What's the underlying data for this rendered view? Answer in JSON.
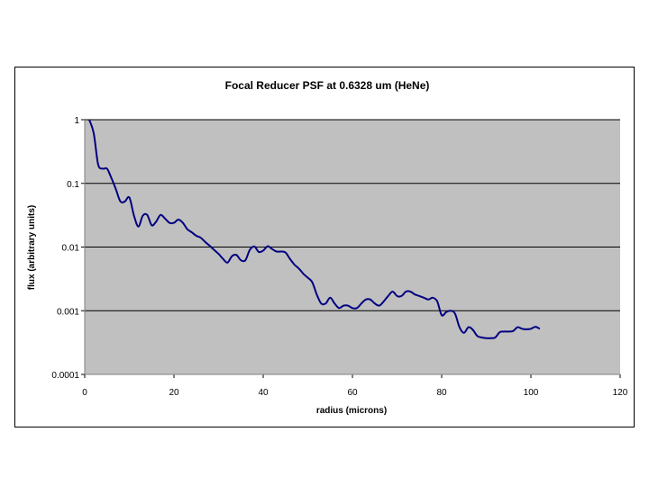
{
  "chart_data": {
    "type": "line",
    "title": "Focal Reducer PSF at 0.6328 um (HeNe)",
    "xlabel": "radius (microns)",
    "ylabel": "flux (arbitrary units)",
    "xlim": [
      0,
      120
    ],
    "ylim": [
      0.0001,
      1
    ],
    "yscale": "log",
    "xticks": [
      0,
      20,
      40,
      60,
      80,
      100,
      120
    ],
    "yticks": [
      0.0001,
      0.001,
      0.01,
      0.1,
      1
    ],
    "xtick_labels": [
      "0",
      "20",
      "40",
      "60",
      "80",
      "100",
      "120"
    ],
    "ytick_labels": [
      "0.0001",
      "0.001",
      "0.01",
      "0.1",
      "1"
    ],
    "grid": "horizontal",
    "legend": "none",
    "colors": {
      "plot_bg": "#c0c0c0",
      "line": "#000080",
      "grid": "#000000"
    },
    "series": [
      {
        "x": [
          1,
          2,
          3,
          4,
          5,
          6,
          7,
          8,
          9,
          10,
          11,
          12,
          13,
          14,
          15,
          16,
          17,
          18,
          19,
          20,
          21,
          22,
          23,
          24,
          25,
          26,
          27,
          28,
          29,
          30,
          31,
          32,
          33,
          34,
          35,
          36,
          37,
          38,
          39,
          40,
          41,
          42,
          43,
          44,
          45,
          46,
          47,
          48,
          49,
          50,
          51,
          52,
          53,
          54,
          55,
          56,
          57,
          58,
          59,
          60,
          61,
          62,
          63,
          64,
          65,
          66,
          67,
          68,
          69,
          70,
          71,
          72,
          73,
          74,
          75,
          76,
          77,
          78,
          79,
          80,
          81,
          82,
          83,
          84,
          85,
          86,
          87,
          88,
          89,
          90,
          91,
          92,
          93,
          94,
          95,
          96,
          97,
          98,
          99,
          100,
          101,
          102
        ],
        "y": [
          1.0,
          0.62,
          0.2,
          0.17,
          0.17,
          0.12,
          0.08,
          0.052,
          0.052,
          0.06,
          0.032,
          0.021,
          0.031,
          0.032,
          0.022,
          0.025,
          0.032,
          0.028,
          0.024,
          0.024,
          0.027,
          0.024,
          0.019,
          0.017,
          0.015,
          0.014,
          0.012,
          0.0105,
          0.009,
          0.0078,
          0.0065,
          0.0057,
          0.0072,
          0.0075,
          0.0062,
          0.0062,
          0.009,
          0.0102,
          0.0084,
          0.0088,
          0.0103,
          0.0093,
          0.0085,
          0.0085,
          0.0082,
          0.0065,
          0.0053,
          0.0046,
          0.0038,
          0.0033,
          0.0028,
          0.0018,
          0.0013,
          0.0013,
          0.0016,
          0.0013,
          0.0011,
          0.0012,
          0.0012,
          0.0011,
          0.0011,
          0.0013,
          0.0015,
          0.0015,
          0.0013,
          0.0012,
          0.0014,
          0.0017,
          0.002,
          0.0017,
          0.0017,
          0.002,
          0.002,
          0.0018,
          0.0017,
          0.0016,
          0.0015,
          0.0016,
          0.0014,
          0.00085,
          0.00095,
          0.001,
          0.0009,
          0.00055,
          0.00045,
          0.00055,
          0.0005,
          0.0004,
          0.00038,
          0.00037,
          0.00037,
          0.00038,
          0.00046,
          0.00047,
          0.00047,
          0.00048,
          0.00055,
          0.00052,
          0.00051,
          0.00052,
          0.00056,
          0.00052
        ]
      }
    ]
  }
}
